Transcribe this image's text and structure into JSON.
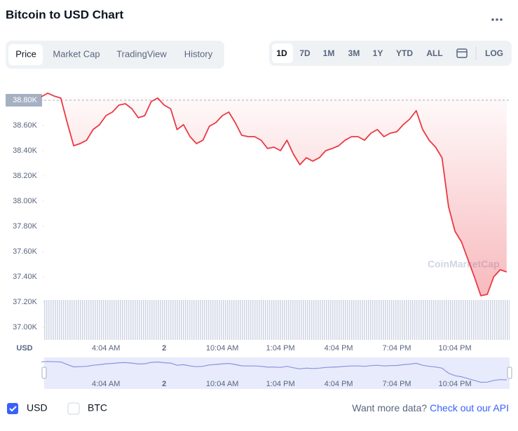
{
  "chart_data": {
    "type": "line",
    "title": "Bitcoin to USD Chart",
    "y_unit_label": "USD",
    "categories": [
      null,
      null,
      null,
      null,
      null,
      null,
      null,
      null,
      null,
      null,
      "4:04 AM",
      null,
      null,
      null,
      null,
      null,
      null,
      null,
      null,
      "2",
      null,
      null,
      null,
      null,
      null,
      null,
      null,
      null,
      "10:04 AM",
      null,
      null,
      null,
      null,
      null,
      null,
      null,
      null,
      "1:04 PM",
      null,
      null,
      null,
      null,
      null,
      null,
      null,
      null,
      "4:04 PM",
      null,
      null,
      null,
      null,
      null,
      null,
      null,
      null,
      "7:04 PM",
      null,
      null,
      null,
      null,
      null,
      null,
      null,
      null,
      "10:04 PM",
      null,
      null,
      null,
      null,
      null,
      null,
      null,
      null
    ],
    "series": [
      {
        "name": "Price",
        "color": "#ea3943",
        "values": [
          38828,
          38856,
          38833,
          38817,
          38622,
          38439,
          38456,
          38483,
          38567,
          38606,
          38678,
          38706,
          38761,
          38772,
          38733,
          38661,
          38678,
          38789,
          38817,
          38761,
          38733,
          38567,
          38606,
          38511,
          38456,
          38483,
          38594,
          38622,
          38678,
          38706,
          38622,
          38522,
          38511,
          38511,
          38483,
          38417,
          38428,
          38400,
          38483,
          38372,
          38289,
          38344,
          38317,
          38344,
          38400,
          38417,
          38439,
          38483,
          38511,
          38511,
          38483,
          38539,
          38567,
          38511,
          38539,
          38550,
          38606,
          38650,
          38717,
          38567,
          38483,
          38428,
          38344,
          37956,
          37761,
          37678,
          37539,
          37400,
          37250,
          37261,
          37400,
          37456,
          37439
        ]
      }
    ],
    "ylim": [
      36900,
      38900
    ],
    "yticks": [
      {
        "value": 37000,
        "label": "37.00K"
      },
      {
        "value": 37200,
        "label": "37.20K"
      },
      {
        "value": 37400,
        "label": "37.40K"
      },
      {
        "value": 37600,
        "label": "37.60K"
      },
      {
        "value": 37800,
        "label": "37.80K"
      },
      {
        "value": 38000,
        "label": "38.00K"
      },
      {
        "value": 38200,
        "label": "38.20K"
      },
      {
        "value": 38400,
        "label": "38.40K"
      },
      {
        "value": 38600,
        "label": "38.60K"
      },
      {
        "value": 38800,
        "label": "38.80K"
      }
    ],
    "grid": false,
    "watermark": "CoinMarketCap"
  },
  "tabs": [
    "Price",
    "Market Cap",
    "TradingView",
    "History"
  ],
  "ranges": [
    "1D",
    "7D",
    "1M",
    "3M",
    "1Y",
    "YTD",
    "ALL"
  ],
  "log_button": "LOG",
  "checkboxes": [
    "USD",
    "BTC"
  ],
  "footer": {
    "question": "Want more data?",
    "link": "Check out our API"
  }
}
